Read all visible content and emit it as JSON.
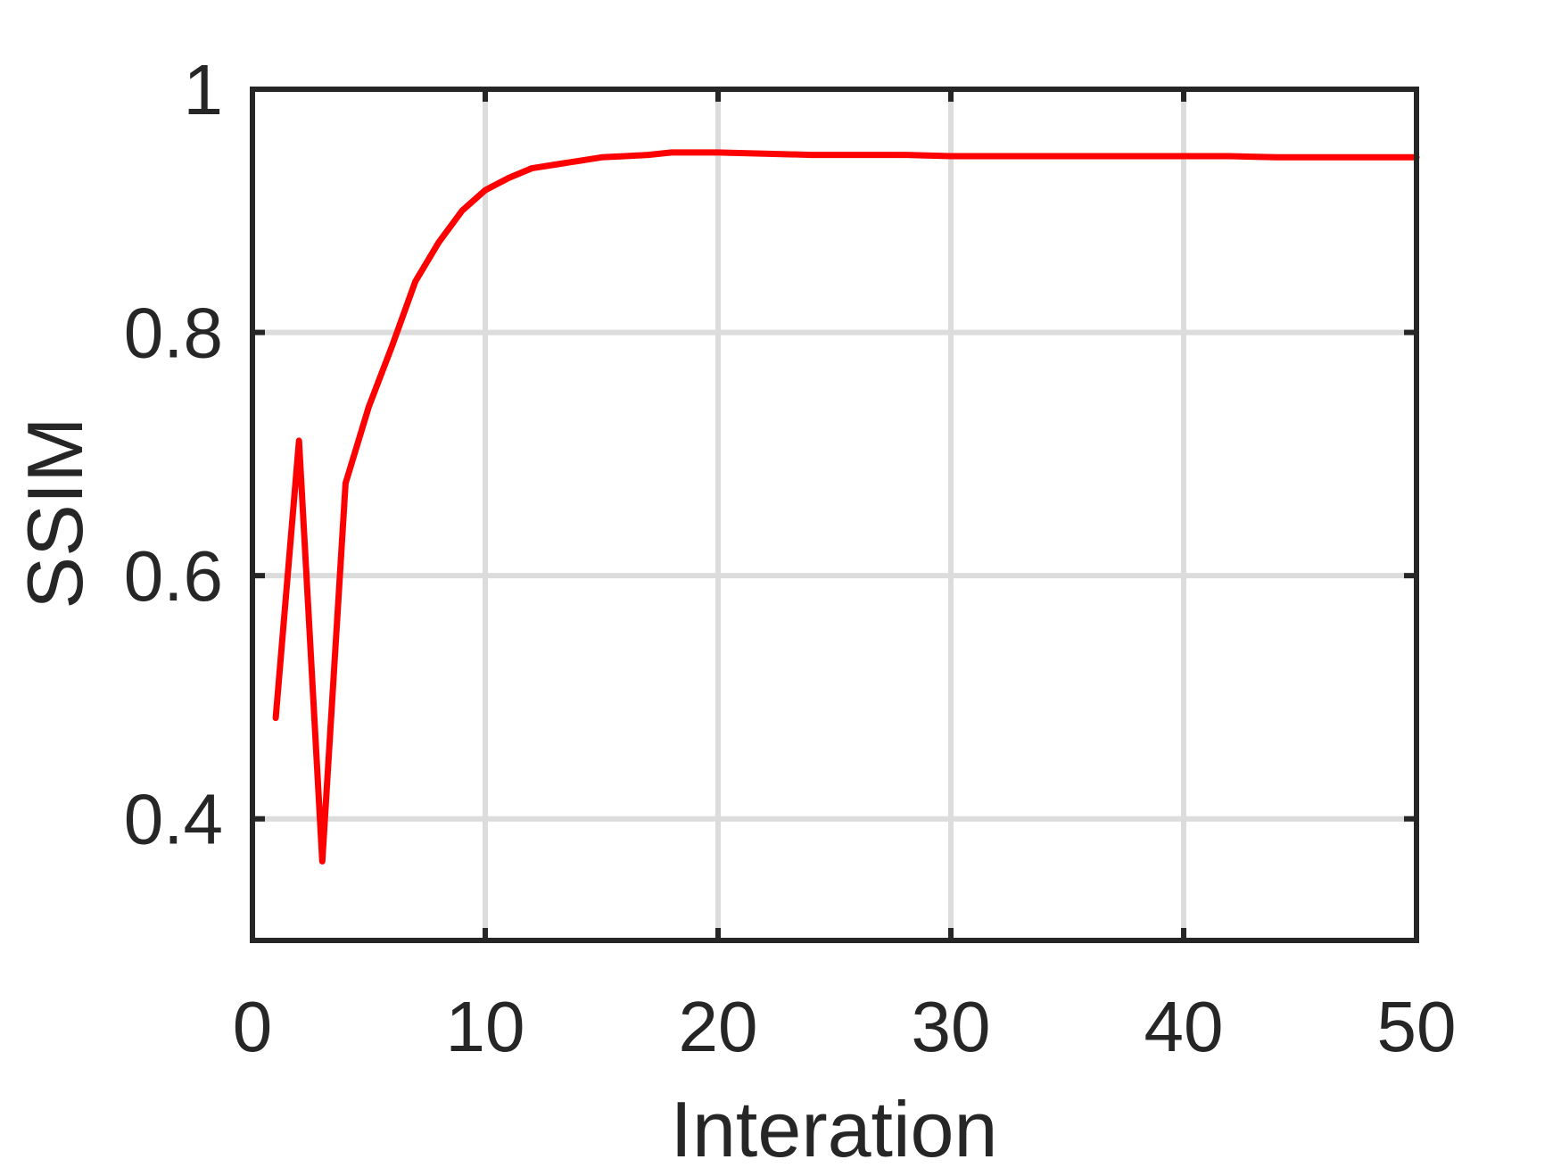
{
  "chart_data": {
    "type": "line",
    "title": "",
    "xlabel": "Interation",
    "ylabel": "SSIM",
    "xlim": [
      0,
      50
    ],
    "ylim": [
      0.3,
      1.0
    ],
    "xticks": [
      0,
      10,
      20,
      30,
      40,
      50
    ],
    "xtick_labels": [
      "0",
      "10",
      "20",
      "30",
      "40",
      "50"
    ],
    "yticks": [
      0.4,
      0.6,
      0.8,
      1.0
    ],
    "ytick_labels": [
      "0.4",
      "0.6",
      "0.8",
      "1"
    ],
    "grid": true,
    "colors": {
      "line": "#ff0000",
      "axes": "#262626",
      "grid": "#dcdcdc"
    },
    "series": [
      {
        "x": [
          1,
          2,
          3,
          4,
          5,
          6,
          7,
          8,
          9,
          10,
          11,
          12,
          13,
          14,
          15,
          16,
          17,
          18,
          19,
          20,
          22,
          24,
          26,
          28,
          30,
          32,
          34,
          36,
          38,
          40,
          42,
          44,
          46,
          48,
          50
        ],
        "values": [
          0.483,
          0.711,
          0.365,
          0.676,
          0.739,
          0.789,
          0.842,
          0.874,
          0.9,
          0.917,
          0.927,
          0.935,
          0.938,
          0.941,
          0.944,
          0.945,
          0.946,
          0.948,
          0.948,
          0.948,
          0.947,
          0.946,
          0.946,
          0.946,
          0.945,
          0.945,
          0.945,
          0.945,
          0.945,
          0.945,
          0.945,
          0.944,
          0.944,
          0.944,
          0.944
        ]
      }
    ]
  }
}
